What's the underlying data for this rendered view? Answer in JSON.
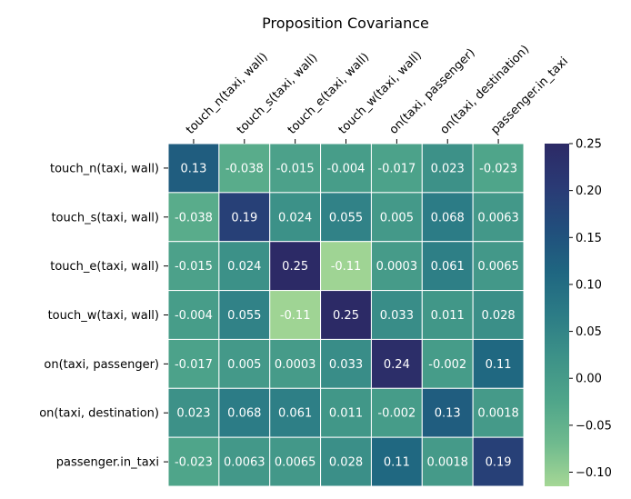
{
  "chart_data": {
    "type": "heatmap",
    "title": "Proposition Covariance",
    "xlabel": "",
    "ylabel": "",
    "row_labels": [
      "touch_n(taxi, wall)",
      "touch_s(taxi, wall)",
      "touch_e(taxi, wall)",
      "touch_w(taxi, wall)",
      "on(taxi, passenger)",
      "on(taxi, destination)",
      "passenger.in_taxi"
    ],
    "col_labels": [
      "touch_n(taxi, wall)",
      "touch_s(taxi, wall)",
      "touch_e(taxi, wall)",
      "touch_w(taxi, wall)",
      "on(taxi, passenger)",
      "on(taxi, destination)",
      "passenger.in_taxi"
    ],
    "values": [
      [
        0.13,
        -0.038,
        -0.015,
        -0.004,
        -0.017,
        0.023,
        -0.023
      ],
      [
        -0.038,
        0.19,
        0.024,
        0.055,
        0.005,
        0.068,
        0.0063
      ],
      [
        -0.015,
        0.024,
        0.25,
        -0.11,
        0.0003,
        0.061,
        0.0065
      ],
      [
        -0.004,
        0.055,
        -0.11,
        0.25,
        0.033,
        0.011,
        0.028
      ],
      [
        -0.017,
        0.005,
        0.0003,
        0.033,
        0.24,
        -0.002,
        0.11
      ],
      [
        0.023,
        0.068,
        0.061,
        0.011,
        -0.002,
        0.13,
        0.0018
      ],
      [
        -0.023,
        0.0063,
        0.0065,
        0.028,
        0.11,
        0.0018,
        0.19
      ]
    ],
    "cell_labels": [
      [
        "0.13",
        "-0.038",
        "-0.015",
        "-0.004",
        "-0.017",
        "0.023",
        "-0.023"
      ],
      [
        "-0.038",
        "0.19",
        "0.024",
        "0.055",
        "0.005",
        "0.068",
        "0.0063"
      ],
      [
        "-0.015",
        "0.024",
        "0.25",
        "-0.11",
        "0.0003",
        "0.061",
        "0.0065"
      ],
      [
        "-0.004",
        "0.055",
        "-0.11",
        "0.25",
        "0.033",
        "0.011",
        "0.028"
      ],
      [
        "-0.017",
        "0.005",
        "0.0003",
        "0.033",
        "0.24",
        "-0.002",
        "0.11"
      ],
      [
        "0.023",
        "0.068",
        "0.061",
        "0.011",
        "-0.002",
        "0.13",
        "0.0018"
      ],
      [
        "-0.023",
        "0.0063",
        "0.0065",
        "0.028",
        "0.11",
        "0.0018",
        "0.19"
      ]
    ],
    "colorbar": {
      "min": -0.115,
      "max": 0.25,
      "ticks": [
        0.25,
        0.2,
        0.15,
        0.1,
        0.05,
        0.0,
        -0.05,
        -0.1
      ],
      "tick_labels": [
        "0.25",
        "0.20",
        "0.15",
        "0.10",
        "0.05",
        "0.00",
        "−0.05",
        "−0.10"
      ]
    },
    "colormap": [
      "#a5d795",
      "#6fba8e",
      "#4fa58a",
      "#3d9288",
      "#2c7c86",
      "#1f6681",
      "#214e7c",
      "#2a3a75",
      "#2c2a66"
    ],
    "grid": false,
    "legend": "colorbar-right"
  }
}
